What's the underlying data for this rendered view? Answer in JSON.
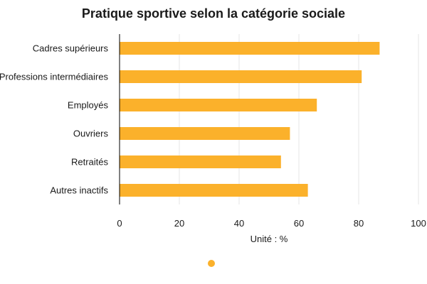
{
  "chart_data": {
    "type": "bar",
    "orientation": "horizontal",
    "title": "Pratique sportive selon la catégorie sociale",
    "categories": [
      "Cadres supérieurs",
      "Professions intermédiaires",
      "Employés",
      "Ouvriers",
      "Retraités",
      "Autres inactifs"
    ],
    "values": [
      87,
      81,
      66,
      57,
      54,
      63
    ],
    "xlabel": "Unité : %",
    "ylabel": "",
    "xlim": [
      0,
      100
    ],
    "xticks": [
      "0",
      "20",
      "40",
      "60",
      "80",
      "100"
    ],
    "grid": "vertical",
    "legend": "bottom-center",
    "colors": {
      "bar": "#FBB12B",
      "grid": "#e6e6e6",
      "axis": "#000000",
      "text": "#1a1a1a"
    }
  }
}
